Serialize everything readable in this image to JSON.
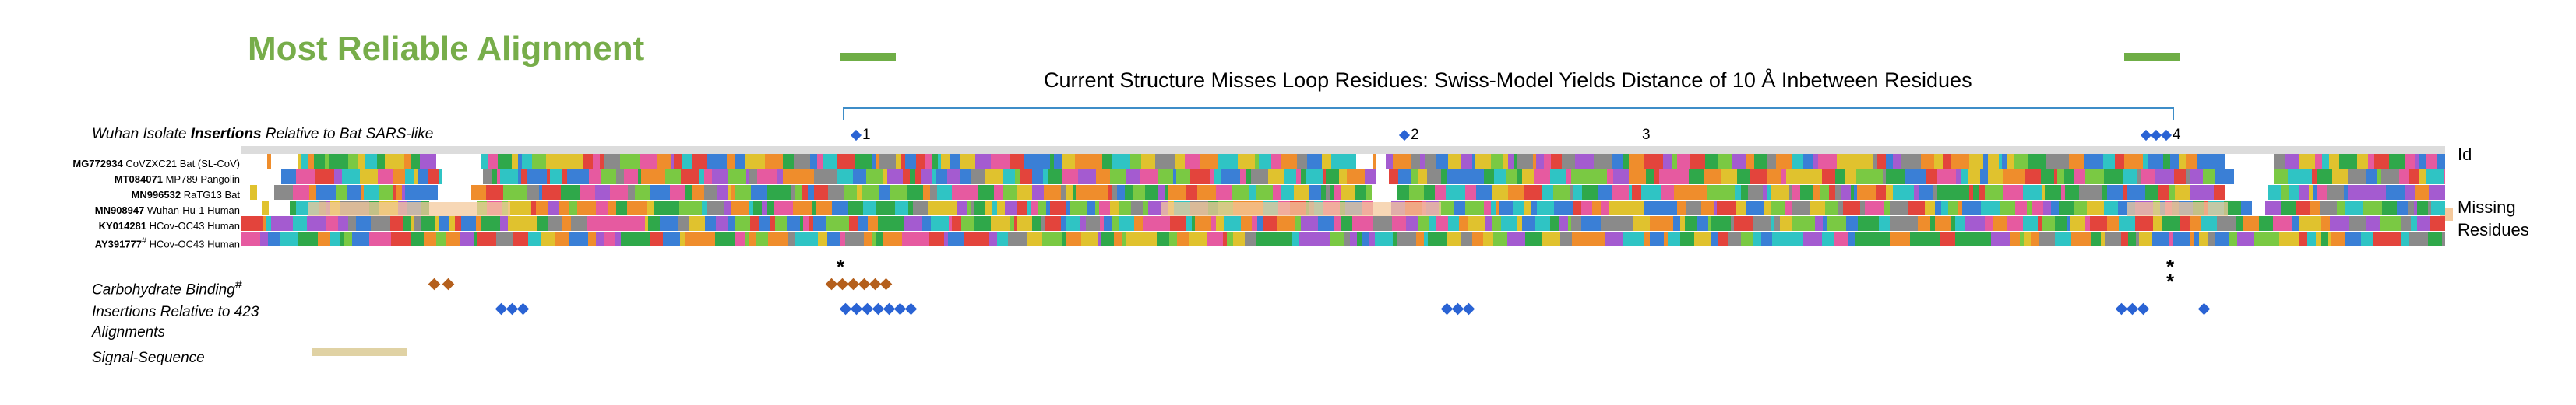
{
  "title": "Most Reliable Alignment",
  "header_text": "Current Structure Misses Loop Residues: Swiss-Model Yields Distance of 10 Å Inbetween Residues",
  "wuhan_label": "Wuhan Isolate Insertions Relative to Bat SARS-like",
  "wuhan_label_parts": {
    "pre": "Wuhan Isolate ",
    "bold": "Insertions",
    "post": " Relative to Bat SARS-like"
  },
  "markers": [
    "1",
    "2",
    "3",
    "4"
  ],
  "side_labels": {
    "id": "Id",
    "missing_line1": "Missing",
    "missing_line2": "Residues"
  },
  "sequences": [
    {
      "accession": "MG772934",
      "name": "CoVZXC21",
      "host": "Bat (SL-CoV)"
    },
    {
      "accession": "MT084071",
      "name": "MP789",
      "host": "Pangolin"
    },
    {
      "accession": "MN996532",
      "name": "RaTG13",
      "host": "Bat"
    },
    {
      "accession": "MN908947",
      "name": "Wuhan-Hu-1",
      "host": "Human"
    },
    {
      "accession": "KY014281",
      "name": "HCov-OC43",
      "host": "Human"
    },
    {
      "accession": "AY391777",
      "accession_sup": "#",
      "name": "HCov-OC43",
      "host": "Human"
    }
  ],
  "annotations": {
    "carbohydrate": "Carbohydrate Binding",
    "carbohydrate_sup": "#",
    "insertions_line1": "Insertions Relative to 423",
    "insertions_line2": "Alignments",
    "signal": "Signal-Sequence"
  },
  "colors": {
    "title_green": "#77ad4a",
    "bar_green": "#6fae46",
    "bracket_blue": "#3e8dc8",
    "marker_blue": "#2a63d4",
    "carb_brown": "#b45f1c",
    "missing_peach": "#f4c99c",
    "signal_tan": "#e0d2a4",
    "residue_palette": [
      "#3a7fd6",
      "#2fa84a",
      "#e3443c",
      "#a45bd0",
      "#e0c22e",
      "#ef8d2c",
      "#2fc4c4",
      "#e65aa0",
      "#8a8a8a",
      "#7ac943"
    ]
  }
}
